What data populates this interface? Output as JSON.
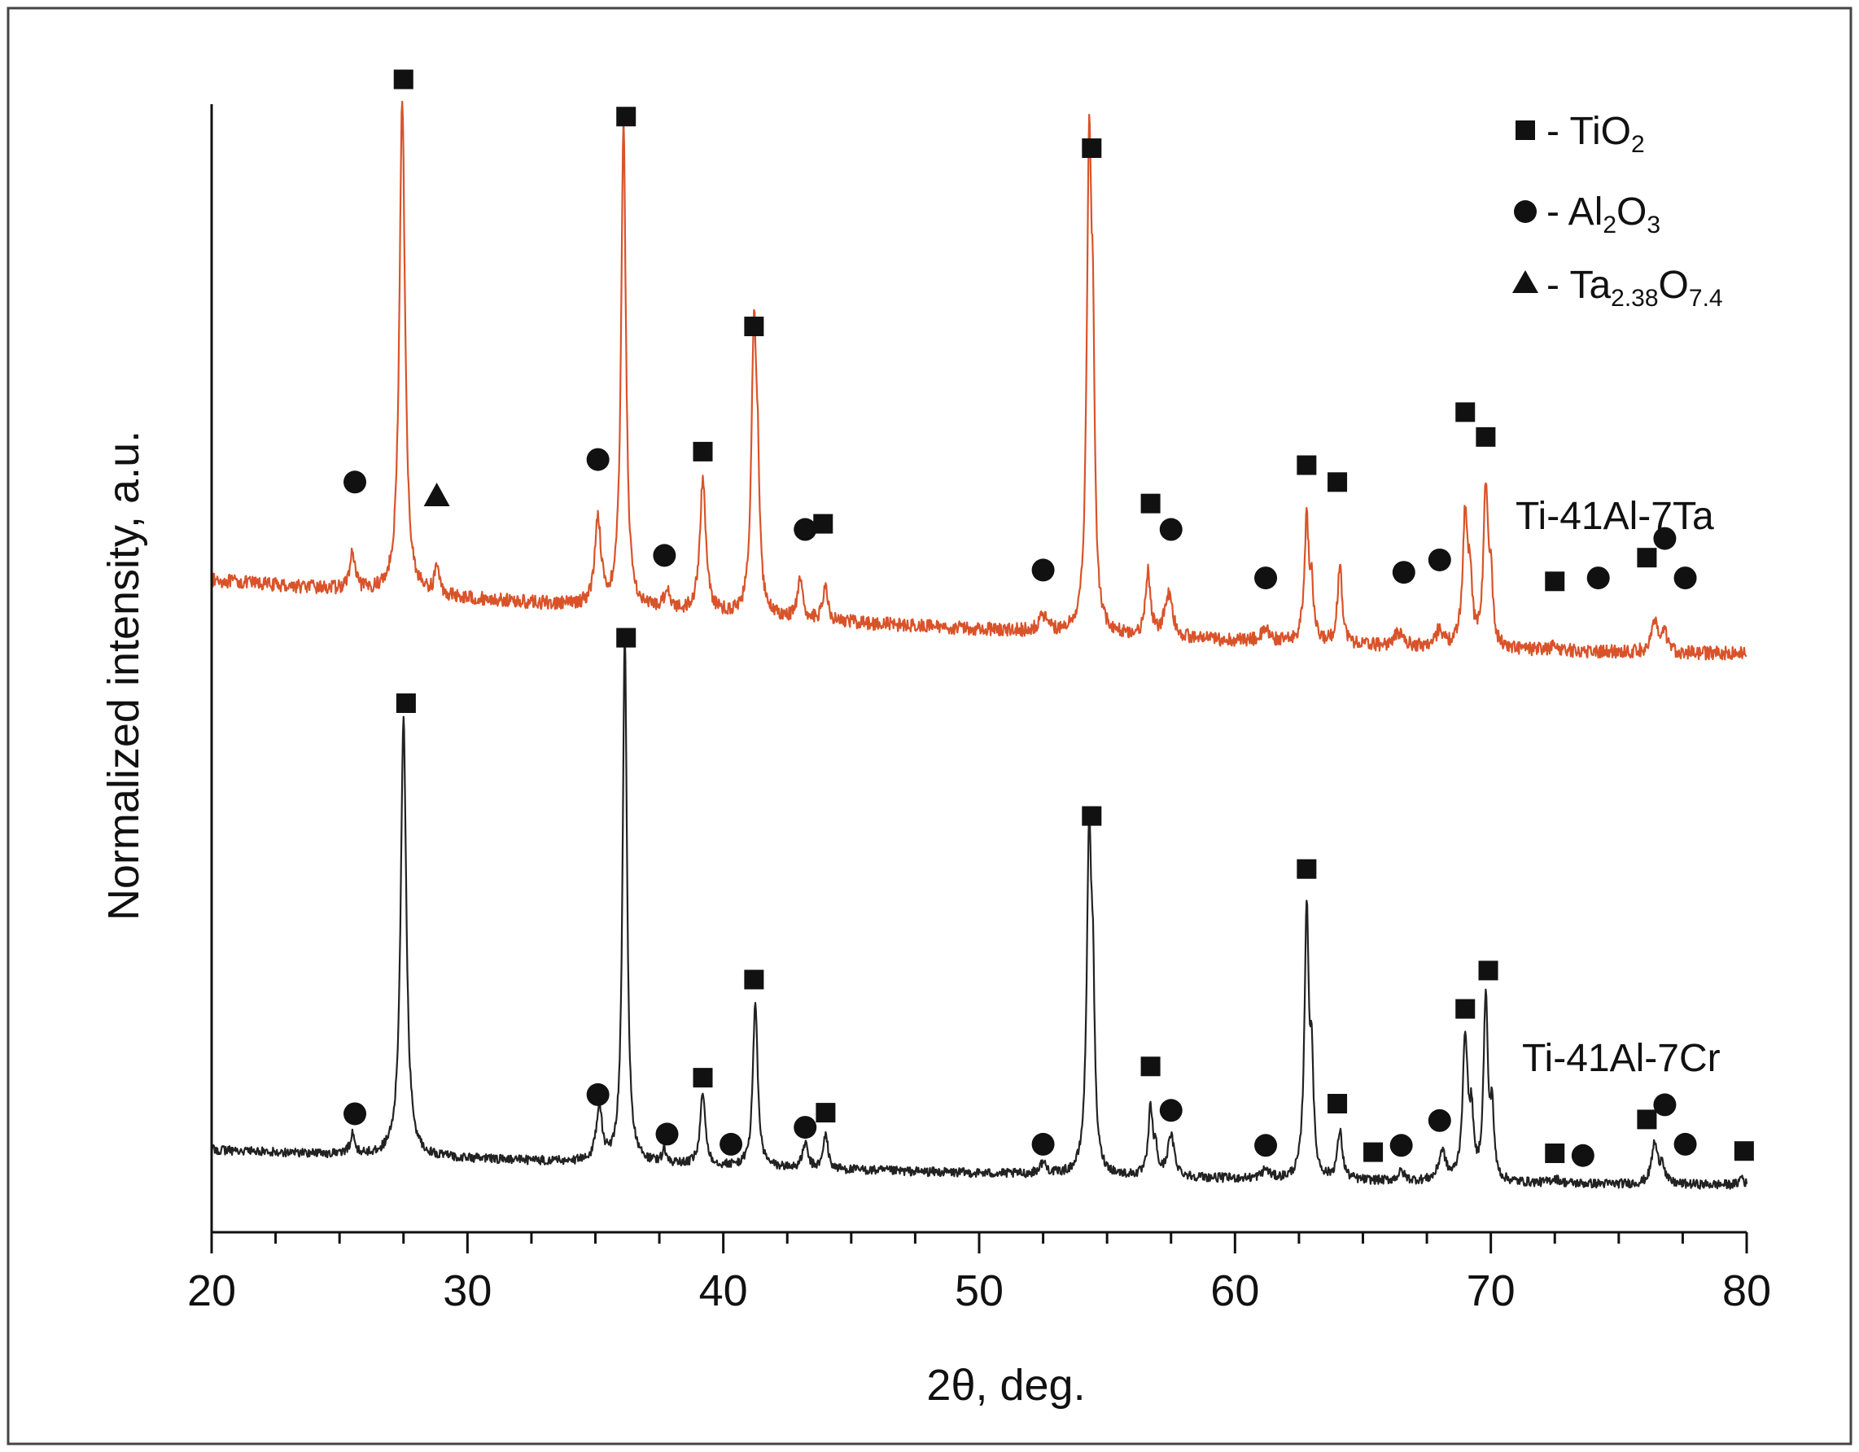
{
  "chart_data": {
    "type": "line",
    "title": "",
    "xlabel": "2θ, deg.",
    "ylabel": "Normalized intensity, a.u.",
    "xlim": [
      20,
      80
    ],
    "ylim": [
      0,
      1
    ],
    "x_ticks": [
      "20",
      "30",
      "40",
      "50",
      "60",
      "70",
      "80"
    ],
    "x_tick_values": [
      20,
      30,
      40,
      50,
      60,
      70,
      80
    ],
    "legend": [
      {
        "marker": "square",
        "text": "- TiO",
        "sub1": "2",
        "mid": "",
        "sub2": ""
      },
      {
        "marker": "circle",
        "text": "- Al",
        "sub1": "2",
        "mid": "O",
        "sub2": "3"
      },
      {
        "marker": "triangle",
        "text": "- Ta",
        "sub1": "2.38",
        "mid": "O",
        "sub2": "7.4"
      }
    ],
    "colors": {
      "Ti-41Al-7Ta": "#d9532a",
      "Ti-41Al-7Cr": "#222222",
      "axis": "#111111",
      "marker": "#111111"
    },
    "series": [
      {
        "name": "Ti-41Al-7Ta",
        "baseline_start": 0.578,
        "baseline_end": 0.513,
        "noise": 0.006,
        "peaks": [
          {
            "x": 25.5,
            "h": 0.032,
            "w": 0.12
          },
          {
            "x": 27.45,
            "h": 0.438,
            "w": 0.13
          },
          {
            "x": 28.8,
            "h": 0.026,
            "w": 0.1
          },
          {
            "x": 35.1,
            "h": 0.078,
            "w": 0.14
          },
          {
            "x": 36.1,
            "h": 0.434,
            "w": 0.11
          },
          {
            "x": 37.8,
            "h": 0.018,
            "w": 0.14
          },
          {
            "x": 39.2,
            "h": 0.118,
            "w": 0.14
          },
          {
            "x": 41.2,
            "h": 0.252,
            "w": 0.12
          },
          {
            "x": 41.35,
            "h": 0.08,
            "w": 0.08
          },
          {
            "x": 43.0,
            "h": 0.032,
            "w": 0.12
          },
          {
            "x": 44.0,
            "h": 0.034,
            "w": 0.1
          },
          {
            "x": 52.5,
            "h": 0.014,
            "w": 0.18
          },
          {
            "x": 54.3,
            "h": 0.424,
            "w": 0.11
          },
          {
            "x": 54.45,
            "h": 0.18,
            "w": 0.08
          },
          {
            "x": 56.6,
            "h": 0.056,
            "w": 0.11
          },
          {
            "x": 57.4,
            "h": 0.038,
            "w": 0.18
          },
          {
            "x": 61.2,
            "h": 0.01,
            "w": 0.2
          },
          {
            "x": 62.8,
            "h": 0.108,
            "w": 0.11
          },
          {
            "x": 63.0,
            "h": 0.04,
            "w": 0.08
          },
          {
            "x": 64.1,
            "h": 0.07,
            "w": 0.11
          },
          {
            "x": 66.4,
            "h": 0.012,
            "w": 0.2
          },
          {
            "x": 68.0,
            "h": 0.016,
            "w": 0.15
          },
          {
            "x": 69.0,
            "h": 0.118,
            "w": 0.12
          },
          {
            "x": 69.2,
            "h": 0.05,
            "w": 0.08
          },
          {
            "x": 69.8,
            "h": 0.138,
            "w": 0.11
          },
          {
            "x": 70.0,
            "h": 0.055,
            "w": 0.08
          },
          {
            "x": 72.5,
            "h": 0.004,
            "w": 0.2
          },
          {
            "x": 76.4,
            "h": 0.026,
            "w": 0.16
          },
          {
            "x": 76.8,
            "h": 0.016,
            "w": 0.12
          }
        ]
      },
      {
        "name": "Ti-41Al-7Cr",
        "baseline_start": 0.073,
        "baseline_end": 0.042,
        "noise": 0.004,
        "peaks": [
          {
            "x": 25.5,
            "h": 0.018,
            "w": 0.1
          },
          {
            "x": 27.5,
            "h": 0.39,
            "w": 0.13
          },
          {
            "x": 35.15,
            "h": 0.05,
            "w": 0.13
          },
          {
            "x": 36.15,
            "h": 0.472,
            "w": 0.1
          },
          {
            "x": 37.7,
            "h": 0.012,
            "w": 0.1
          },
          {
            "x": 39.2,
            "h": 0.064,
            "w": 0.12
          },
          {
            "x": 41.25,
            "h": 0.148,
            "w": 0.11
          },
          {
            "x": 43.2,
            "h": 0.022,
            "w": 0.12
          },
          {
            "x": 44.0,
            "h": 0.032,
            "w": 0.1
          },
          {
            "x": 52.5,
            "h": 0.01,
            "w": 0.16
          },
          {
            "x": 54.3,
            "h": 0.297,
            "w": 0.11
          },
          {
            "x": 54.45,
            "h": 0.12,
            "w": 0.08
          },
          {
            "x": 56.7,
            "h": 0.06,
            "w": 0.1
          },
          {
            "x": 56.9,
            "h": 0.02,
            "w": 0.08
          },
          {
            "x": 57.5,
            "h": 0.036,
            "w": 0.16
          },
          {
            "x": 61.2,
            "h": 0.008,
            "w": 0.18
          },
          {
            "x": 62.8,
            "h": 0.238,
            "w": 0.1
          },
          {
            "x": 63.0,
            "h": 0.09,
            "w": 0.08
          },
          {
            "x": 64.1,
            "h": 0.042,
            "w": 0.12
          },
          {
            "x": 66.5,
            "h": 0.008,
            "w": 0.16
          },
          {
            "x": 68.1,
            "h": 0.026,
            "w": 0.16
          },
          {
            "x": 69.0,
            "h": 0.128,
            "w": 0.12
          },
          {
            "x": 69.25,
            "h": 0.05,
            "w": 0.08
          },
          {
            "x": 69.8,
            "h": 0.162,
            "w": 0.1
          },
          {
            "x": 70.05,
            "h": 0.06,
            "w": 0.08
          },
          {
            "x": 72.5,
            "h": 0.004,
            "w": 0.2
          },
          {
            "x": 76.4,
            "h": 0.036,
            "w": 0.14
          },
          {
            "x": 76.7,
            "h": 0.018,
            "w": 0.1
          },
          {
            "x": 79.8,
            "h": 0.008,
            "w": 0.08
          }
        ]
      }
    ],
    "markers": [
      {
        "series": "Ti-41Al-7Ta",
        "type": "circle",
        "x": 25.6,
        "y": 0.665
      },
      {
        "series": "Ti-41Al-7Ta",
        "type": "square",
        "x": 27.5,
        "y": 1.022
      },
      {
        "series": "Ti-41Al-7Ta",
        "type": "triangle",
        "x": 28.8,
        "y": 0.653
      },
      {
        "series": "Ti-41Al-7Ta",
        "type": "circle",
        "x": 35.1,
        "y": 0.685
      },
      {
        "series": "Ti-41Al-7Ta",
        "type": "square",
        "x": 36.2,
        "y": 0.989
      },
      {
        "series": "Ti-41Al-7Ta",
        "type": "circle",
        "x": 37.7,
        "y": 0.6
      },
      {
        "series": "Ti-41Al-7Ta",
        "type": "square",
        "x": 39.2,
        "y": 0.692
      },
      {
        "series": "Ti-41Al-7Ta",
        "type": "square",
        "x": 41.2,
        "y": 0.803
      },
      {
        "series": "Ti-41Al-7Ta",
        "type": "circle",
        "x": 43.2,
        "y": 0.623
      },
      {
        "series": "Ti-41Al-7Ta",
        "type": "square",
        "x": 43.9,
        "y": 0.628
      },
      {
        "series": "Ti-41Al-7Ta",
        "type": "circle",
        "x": 52.5,
        "y": 0.587
      },
      {
        "series": "Ti-41Al-7Ta",
        "type": "square",
        "x": 54.4,
        "y": 0.961
      },
      {
        "series": "Ti-41Al-7Ta",
        "type": "square",
        "x": 56.7,
        "y": 0.646
      },
      {
        "series": "Ti-41Al-7Ta",
        "type": "circle",
        "x": 57.5,
        "y": 0.623
      },
      {
        "series": "Ti-41Al-7Ta",
        "type": "circle",
        "x": 61.2,
        "y": 0.58
      },
      {
        "series": "Ti-41Al-7Ta",
        "type": "square",
        "x": 62.8,
        "y": 0.68
      },
      {
        "series": "Ti-41Al-7Ta",
        "type": "square",
        "x": 64.0,
        "y": 0.665
      },
      {
        "series": "Ti-41Al-7Ta",
        "type": "circle",
        "x": 66.6,
        "y": 0.585
      },
      {
        "series": "Ti-41Al-7Ta",
        "type": "circle",
        "x": 68.0,
        "y": 0.596
      },
      {
        "series": "Ti-41Al-7Ta",
        "type": "square",
        "x": 69.0,
        "y": 0.727
      },
      {
        "series": "Ti-41Al-7Ta",
        "type": "square",
        "x": 69.8,
        "y": 0.705
      },
      {
        "series": "Ti-41Al-7Ta",
        "type": "square",
        "x": 72.5,
        "y": 0.577
      },
      {
        "series": "Ti-41Al-7Ta",
        "type": "circle",
        "x": 74.2,
        "y": 0.58
      },
      {
        "series": "Ti-41Al-7Ta",
        "type": "square",
        "x": 76.1,
        "y": 0.598
      },
      {
        "series": "Ti-41Al-7Ta",
        "type": "circle",
        "x": 76.8,
        "y": 0.615
      },
      {
        "series": "Ti-41Al-7Ta",
        "type": "circle",
        "x": 77.6,
        "y": 0.58
      },
      {
        "series": "Ti-41Al-7Cr",
        "type": "circle",
        "x": 25.6,
        "y": 0.105
      },
      {
        "series": "Ti-41Al-7Cr",
        "type": "square",
        "x": 27.6,
        "y": 0.469
      },
      {
        "series": "Ti-41Al-7Cr",
        "type": "circle",
        "x": 35.1,
        "y": 0.122
      },
      {
        "series": "Ti-41Al-7Cr",
        "type": "square",
        "x": 36.2,
        "y": 0.527
      },
      {
        "series": "Ti-41Al-7Cr",
        "type": "circle",
        "x": 37.8,
        "y": 0.087
      },
      {
        "series": "Ti-41Al-7Cr",
        "type": "square",
        "x": 39.2,
        "y": 0.137
      },
      {
        "series": "Ti-41Al-7Cr",
        "type": "circle",
        "x": 40.3,
        "y": 0.078
      },
      {
        "series": "Ti-41Al-7Cr",
        "type": "square",
        "x": 41.2,
        "y": 0.224
      },
      {
        "series": "Ti-41Al-7Cr",
        "type": "circle",
        "x": 43.2,
        "y": 0.093
      },
      {
        "series": "Ti-41Al-7Cr",
        "type": "square",
        "x": 44.0,
        "y": 0.106
      },
      {
        "series": "Ti-41Al-7Cr",
        "type": "circle",
        "x": 52.5,
        "y": 0.078
      },
      {
        "series": "Ti-41Al-7Cr",
        "type": "square",
        "x": 54.4,
        "y": 0.369
      },
      {
        "series": "Ti-41Al-7Cr",
        "type": "square",
        "x": 56.7,
        "y": 0.147
      },
      {
        "series": "Ti-41Al-7Cr",
        "type": "circle",
        "x": 57.5,
        "y": 0.108
      },
      {
        "series": "Ti-41Al-7Cr",
        "type": "circle",
        "x": 61.2,
        "y": 0.077
      },
      {
        "series": "Ti-41Al-7Cr",
        "type": "square",
        "x": 62.8,
        "y": 0.322
      },
      {
        "series": "Ti-41Al-7Cr",
        "type": "square",
        "x": 64.0,
        "y": 0.114
      },
      {
        "series": "Ti-41Al-7Cr",
        "type": "square",
        "x": 65.4,
        "y": 0.071
      },
      {
        "series": "Ti-41Al-7Cr",
        "type": "circle",
        "x": 66.5,
        "y": 0.077
      },
      {
        "series": "Ti-41Al-7Cr",
        "type": "circle",
        "x": 68.0,
        "y": 0.099
      },
      {
        "series": "Ti-41Al-7Cr",
        "type": "square",
        "x": 69.0,
        "y": 0.198
      },
      {
        "series": "Ti-41Al-7Cr",
        "type": "square",
        "x": 69.9,
        "y": 0.232
      },
      {
        "series": "Ti-41Al-7Cr",
        "type": "square",
        "x": 72.5,
        "y": 0.07
      },
      {
        "series": "Ti-41Al-7Cr",
        "type": "circle",
        "x": 73.6,
        "y": 0.068
      },
      {
        "series": "Ti-41Al-7Cr",
        "type": "square",
        "x": 76.1,
        "y": 0.1
      },
      {
        "series": "Ti-41Al-7Cr",
        "type": "circle",
        "x": 76.8,
        "y": 0.113
      },
      {
        "series": "Ti-41Al-7Cr",
        "type": "circle",
        "x": 77.6,
        "y": 0.078
      },
      {
        "series": "Ti-41Al-7Cr",
        "type": "square",
        "x": 79.9,
        "y": 0.072
      }
    ]
  }
}
